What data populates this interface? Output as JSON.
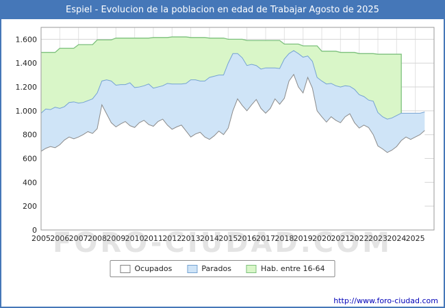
{
  "header": {
    "title": "Espiel - Evolucion de la poblacion en edad de Trabajar Agosto de 2025"
  },
  "watermark": "FORO-CIUDAD.COM",
  "footer": {
    "url": "http://www.foro-ciudad.com"
  },
  "colors": {
    "frame_blue": "#4577b8",
    "grid": "#d5d5d5",
    "plot_border": "#9a9a9a"
  },
  "legend": {
    "items": [
      {
        "label": "Ocupados",
        "fill": "#ffffff",
        "stroke": "#808080"
      },
      {
        "label": "Parados",
        "fill": "#cfe4f7",
        "stroke": "#74a2d2"
      },
      {
        "label": "Hab. entre 16-64",
        "fill": "#d9f6c8",
        "stroke": "#7cc07c"
      }
    ]
  },
  "axes": {
    "y_tick_labels": [
      "0",
      "200",
      "400",
      "600",
      "800",
      "1.000",
      "1.200",
      "1.400",
      "1.600"
    ],
    "y_tick_values": [
      0,
      200,
      400,
      600,
      800,
      1000,
      1200,
      1400,
      1600
    ],
    "x_tick_labels": [
      "2005",
      "2006",
      "2007",
      "2008",
      "2009",
      "2010",
      "2011",
      "2012",
      "2013",
      "2014",
      "2015",
      "2016",
      "2017",
      "2018",
      "2019",
      "2020",
      "2021",
      "2022",
      "2023",
      "2024",
      "2025"
    ],
    "x_tick_values": [
      2005,
      2006,
      2007,
      2008,
      2009,
      2010,
      2011,
      2012,
      2013,
      2014,
      2015,
      2016,
      2017,
      2018,
      2019,
      2020,
      2021,
      2022,
      2023,
      2024,
      2025
    ]
  },
  "chart_data": {
    "type": "area",
    "title": "Espiel - Evolucion de la poblacion en edad de Trabajar Agosto de 2025",
    "xlabel": "",
    "ylabel": "",
    "stacked_note": "Parados is stacked on top of Ocupados; Hab. entre 16-64 is the total band above them; values are approximate quarterly readings, persons",
    "x_start": 2005,
    "x_step": 0.25,
    "xlim": [
      2005,
      2026
    ],
    "ylim": [
      0,
      1700
    ],
    "grid": true,
    "legend_position": "bottom",
    "series": [
      {
        "name": "Ocupados",
        "fill": "#ffffff",
        "stroke": "#8a8a8a",
        "values": [
          660,
          685,
          700,
          690,
          715,
          755,
          780,
          765,
          780,
          800,
          825,
          810,
          850,
          1050,
          975,
          900,
          865,
          890,
          910,
          875,
          860,
          900,
          920,
          885,
          870,
          910,
          930,
          880,
          845,
          865,
          880,
          830,
          780,
          805,
          820,
          780,
          760,
          790,
          830,
          800,
          855,
          1000,
          1100,
          1045,
          1000,
          1050,
          1095,
          1020,
          980,
          1020,
          1100,
          1055,
          1105,
          1250,
          1305,
          1200,
          1150,
          1280,
          1190,
          1000,
          950,
          905,
          950,
          920,
          900,
          950,
          975,
          900,
          855,
          880,
          860,
          800,
          705,
          680,
          650,
          670,
          700,
          750,
          780,
          760,
          780,
          800,
          835
        ]
      },
      {
        "name": "Parados",
        "fill": "#cfe4f7",
        "stroke": "#74a2d2",
        "values": [
          320,
          330,
          310,
          340,
          305,
          280,
          290,
          310,
          285,
          270,
          260,
          290,
          300,
          200,
          285,
          350,
          350,
          330,
          310,
          360,
          335,
          300,
          290,
          340,
          320,
          290,
          280,
          350,
          380,
          360,
          345,
          400,
          480,
          455,
          430,
          470,
          520,
          500,
          470,
          500,
          545,
          480,
          380,
          400,
          380,
          340,
          285,
          330,
          380,
          340,
          260,
          300,
          330,
          230,
          200,
          280,
          300,
          180,
          225,
          280,
          300,
          320,
          280,
          290,
          300,
          260,
          230,
          280,
          280,
          240,
          230,
          280,
          280,
          270,
          280,
          270,
          260,
          230,
          200,
          220,
          200,
          180,
          155
        ]
      },
      {
        "name": "Hab. entre 16-64",
        "fill": "#d9f6c8",
        "stroke": "#7cc07c",
        "values": [
          1490,
          1490,
          1490,
          1490,
          1525,
          1525,
          1525,
          1525,
          1555,
          1555,
          1555,
          1555,
          1595,
          1595,
          1595,
          1595,
          1610,
          1610,
          1610,
          1610,
          1610,
          1610,
          1610,
          1610,
          1615,
          1615,
          1615,
          1615,
          1620,
          1620,
          1620,
          1620,
          1615,
          1615,
          1615,
          1615,
          1610,
          1610,
          1610,
          1610,
          1600,
          1600,
          1600,
          1600,
          1590,
          1590,
          1590,
          1590,
          1590,
          1590,
          1590,
          1590,
          1560,
          1560,
          1560,
          1560,
          1545,
          1545,
          1545,
          1545,
          1500,
          1500,
          1500,
          1500,
          1490,
          1490,
          1490,
          1490,
          1480,
          1480,
          1480,
          1480,
          1475,
          1475,
          1475,
          1475,
          1475,
          1475,
          null,
          null,
          null,
          null,
          null
        ]
      }
    ]
  }
}
